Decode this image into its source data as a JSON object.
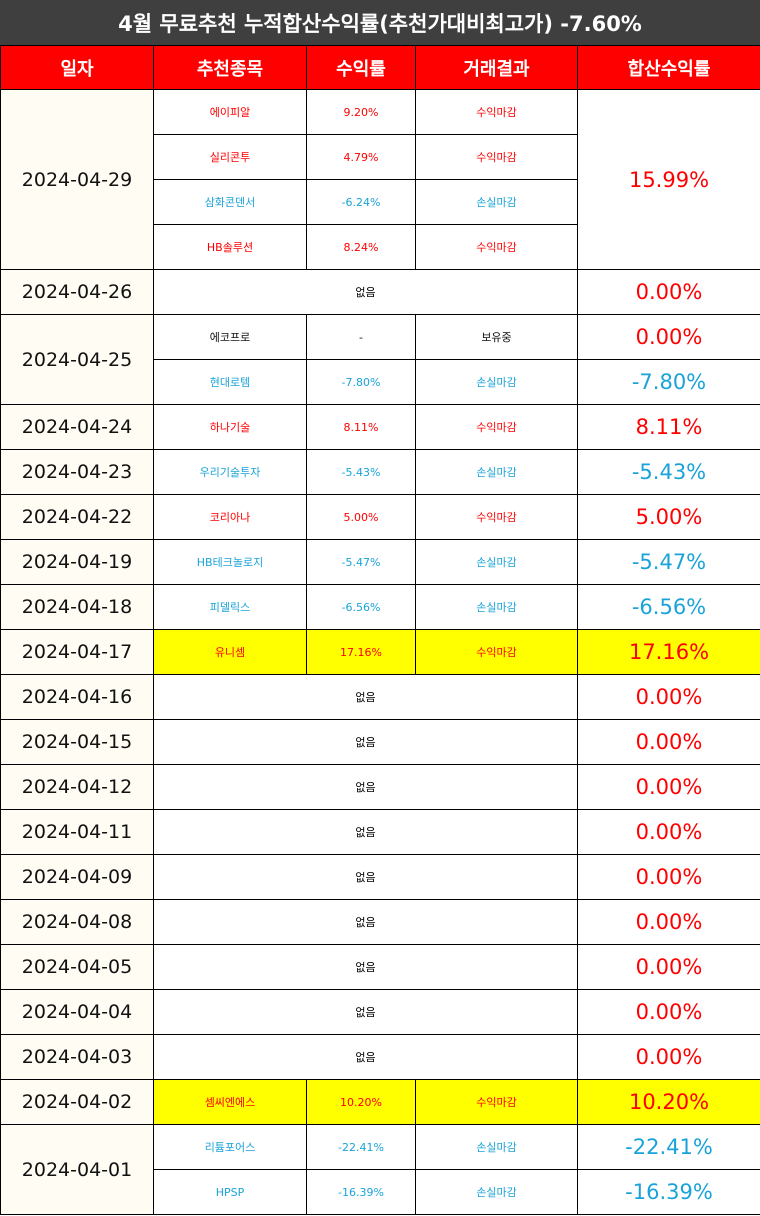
{
  "title": "4월 무료추천 누적합산수익률(추천가대비최고가) -7.60%",
  "headers": [
    "일자",
    "추천종목",
    "수익률",
    "거래결과",
    "합산수익률"
  ],
  "colors": {
    "title_bg": "#3f3f3f",
    "header_bg": "#ff0000",
    "positive": "#ff0000",
    "negative": "#1aa3d9",
    "neutral": "#111111",
    "highlight": "#ffff00",
    "date_bg": "#fffcf3"
  },
  "groups": [
    {
      "date": "2024-04-29",
      "total": "15.99%",
      "total_color": "positive",
      "highlight": false,
      "rows": [
        {
          "name": "에이피알",
          "ret": "9.20%",
          "result": "수익마감",
          "color": "positive"
        },
        {
          "name": "실리콘투",
          "ret": "4.79%",
          "result": "수익마감",
          "color": "positive"
        },
        {
          "name": "삼화콘덴서",
          "ret": "-6.24%",
          "result": "손실마감",
          "color": "negative"
        },
        {
          "name": "HB솔루션",
          "ret": "8.24%",
          "result": "수익마감",
          "color": "positive"
        }
      ]
    },
    {
      "date": "2024-04-26",
      "none": "없음",
      "total": "0.00%",
      "total_color": "positive",
      "highlight": false
    },
    {
      "date": "2024-04-25",
      "highlight": false,
      "rows": [
        {
          "name": "에코프로",
          "ret": "-",
          "result": "보유중",
          "color": "neutral",
          "total": "0.00%",
          "total_color": "positive"
        },
        {
          "name": "현대로템",
          "ret": "-7.80%",
          "result": "손실마감",
          "color": "negative",
          "total": "-7.80%",
          "total_color": "negative"
        }
      ]
    },
    {
      "date": "2024-04-24",
      "total": "8.11%",
      "total_color": "positive",
      "highlight": false,
      "rows": [
        {
          "name": "하나기술",
          "ret": "8.11%",
          "result": "수익마감",
          "color": "positive"
        }
      ]
    },
    {
      "date": "2024-04-23",
      "total": "-5.43%",
      "total_color": "negative",
      "highlight": false,
      "rows": [
        {
          "name": "우리기술투자",
          "ret": "-5.43%",
          "result": "손실마감",
          "color": "negative"
        }
      ]
    },
    {
      "date": "2024-04-22",
      "total": "5.00%",
      "total_color": "positive",
      "highlight": false,
      "rows": [
        {
          "name": "코리아나",
          "ret": "5.00%",
          "result": "수익마감",
          "color": "positive"
        }
      ]
    },
    {
      "date": "2024-04-19",
      "total": "-5.47%",
      "total_color": "negative",
      "highlight": false,
      "rows": [
        {
          "name": "HB테크놀로지",
          "ret": "-5.47%",
          "result": "손실마감",
          "color": "negative"
        }
      ]
    },
    {
      "date": "2024-04-18",
      "total": "-6.56%",
      "total_color": "negative",
      "highlight": false,
      "rows": [
        {
          "name": "피델릭스",
          "ret": "-6.56%",
          "result": "손실마감",
          "color": "negative"
        }
      ]
    },
    {
      "date": "2024-04-17",
      "total": "17.16%",
      "total_color": "positive",
      "highlight": true,
      "rows": [
        {
          "name": "유니셈",
          "ret": "17.16%",
          "result": "수익마감",
          "color": "positive"
        }
      ]
    },
    {
      "date": "2024-04-16",
      "none": "없음",
      "total": "0.00%",
      "total_color": "positive",
      "highlight": false
    },
    {
      "date": "2024-04-15",
      "none": "없음",
      "total": "0.00%",
      "total_color": "positive",
      "highlight": false
    },
    {
      "date": "2024-04-12",
      "none": "없음",
      "total": "0.00%",
      "total_color": "positive",
      "highlight": false
    },
    {
      "date": "2024-04-11",
      "none": "없음",
      "total": "0.00%",
      "total_color": "positive",
      "highlight": false
    },
    {
      "date": "2024-04-09",
      "none": "없음",
      "total": "0.00%",
      "total_color": "positive",
      "highlight": false
    },
    {
      "date": "2024-04-08",
      "none": "없음",
      "total": "0.00%",
      "total_color": "positive",
      "highlight": false
    },
    {
      "date": "2024-04-05",
      "none": "없음",
      "total": "0.00%",
      "total_color": "positive",
      "highlight": false
    },
    {
      "date": "2024-04-04",
      "none": "없음",
      "total": "0.00%",
      "total_color": "positive",
      "highlight": false
    },
    {
      "date": "2024-04-03",
      "none": "없음",
      "total": "0.00%",
      "total_color": "positive",
      "highlight": false
    },
    {
      "date": "2024-04-02",
      "total": "10.20%",
      "total_color": "positive",
      "highlight": true,
      "rows": [
        {
          "name": "셈씨엔에스",
          "ret": "10.20%",
          "result": "수익마감",
          "color": "positive"
        }
      ]
    },
    {
      "date": "2024-04-01",
      "highlight": false,
      "rows": [
        {
          "name": "리튬포어스",
          "ret": "-22.41%",
          "result": "손실마감",
          "color": "negative",
          "total": "-22.41%",
          "total_color": "negative"
        },
        {
          "name": "HPSP",
          "ret": "-16.39%",
          "result": "손실마감",
          "color": "negative",
          "total": "-16.39%",
          "total_color": "negative"
        }
      ]
    }
  ]
}
